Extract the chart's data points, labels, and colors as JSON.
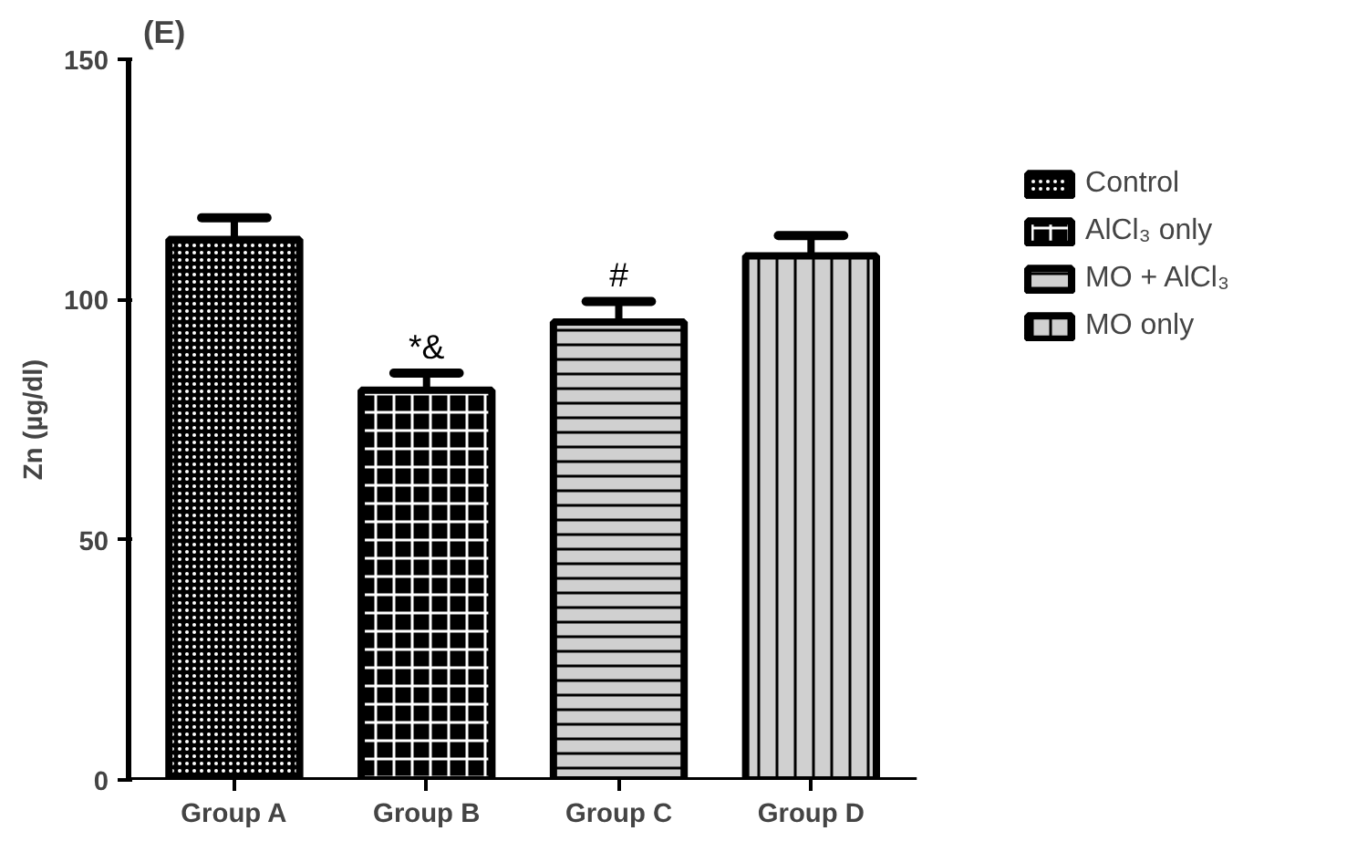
{
  "chart_data": {
    "type": "bar",
    "title": "(E)",
    "ylabel": "Zn (µg/dl)",
    "categories": [
      "Group A",
      "Group B",
      "Group C",
      "Group D"
    ],
    "series": [
      {
        "name": "Control",
        "color": "#000000",
        "values": [
          112.5,
          null,
          null,
          null
        ],
        "errors": [
          [
            112.5,
            117.0
          ],
          null,
          null,
          null
        ]
      },
      {
        "name": "AlCl₃ only",
        "color": "#000000",
        "values": [
          null,
          81.1,
          null,
          null
        ],
        "errors": [
          null,
          [
            81.1,
            84.7
          ],
          null,
          null
        ]
      },
      {
        "name": "MO + AlCl₃",
        "color": "#d0d0d0",
        "values": [
          null,
          null,
          95.3,
          null
        ],
        "errors": [
          null,
          null,
          [
            95.3,
            99.6
          ],
          null
        ]
      },
      {
        "name": "MO only",
        "color": "#d0d0d0",
        "values": [
          null,
          null,
          null,
          109.1
        ],
        "errors": [
          null,
          null,
          null,
          [
            109.1,
            113.3
          ]
        ]
      }
    ],
    "annotations": [
      {
        "text": "*&",
        "x": "Group B",
        "y": 84.7
      },
      {
        "text": "#",
        "x": "Group C",
        "y": 99.6
      }
    ],
    "ylim": [
      0,
      150
    ],
    "yticks": [
      0,
      50,
      100,
      150
    ],
    "grid": false,
    "legend": "right"
  }
}
